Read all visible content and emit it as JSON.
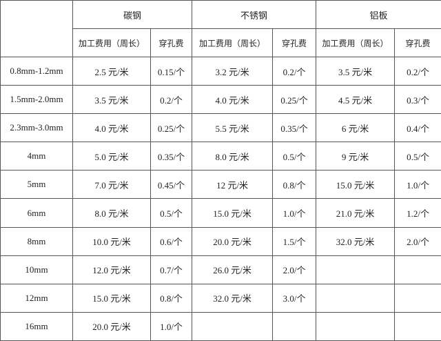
{
  "materials": [
    {
      "name": "碳钢",
      "proc_label": "加工费用（周长）",
      "hole_label": "穿孔费"
    },
    {
      "name": "不锈钢",
      "proc_label": "加工费用（周长）",
      "hole_label": "穿孔费"
    },
    {
      "name": "铝板",
      "proc_label": "加工费用（周长）",
      "hole_label": "穿孔费"
    }
  ],
  "rows": [
    {
      "thickness": "0.8mm-1.2mm",
      "cells": [
        "2.5 元/米",
        "0.15/个",
        "3.2 元/米",
        "0.2/个",
        "3.5 元/米",
        "0.2/个"
      ]
    },
    {
      "thickness": "1.5mm-2.0mm",
      "cells": [
        "3.5 元/米",
        "0.2/个",
        "4.0 元/米",
        "0.25/个",
        "4.5 元/米",
        "0.3/个"
      ]
    },
    {
      "thickness": "2.3mm-3.0mm",
      "cells": [
        "4.0 元/米",
        "0.25/个",
        "5.5 元/米",
        "0.35/个",
        "6 元/米",
        "0.4/个"
      ]
    },
    {
      "thickness": "4mm",
      "cells": [
        "5.0 元/米",
        "0.35/个",
        "8.0 元/米",
        "0.5/个",
        "9 元/米",
        "0.5/个"
      ]
    },
    {
      "thickness": "5mm",
      "cells": [
        "7.0 元/米",
        "0.45/个",
        "12 元/米",
        "0.8/个",
        "15.0 元/米",
        "1.0/个"
      ]
    },
    {
      "thickness": "6mm",
      "cells": [
        "8.0 元/米",
        "0.5/个",
        "15.0 元/米",
        "1.0/个",
        "21.0 元/米",
        "1.2/个"
      ]
    },
    {
      "thickness": "8mm",
      "cells": [
        "10.0 元/米",
        "0.6/个",
        "20.0 元/米",
        "1.5/个",
        "32.0 元/米",
        "2.0/个"
      ]
    },
    {
      "thickness": "10mm",
      "cells": [
        "12.0 元/米",
        "0.7/个",
        "26.0 元/米",
        "2.0/个",
        "",
        ""
      ]
    },
    {
      "thickness": "12mm",
      "cells": [
        "15.0 元/米",
        "0.8/个",
        "32.0 元/米",
        "3.0/个",
        "",
        ""
      ]
    },
    {
      "thickness": "16mm",
      "cells": [
        "20.0 元/米",
        "1.0/个",
        "",
        "",
        "",
        ""
      ]
    }
  ]
}
